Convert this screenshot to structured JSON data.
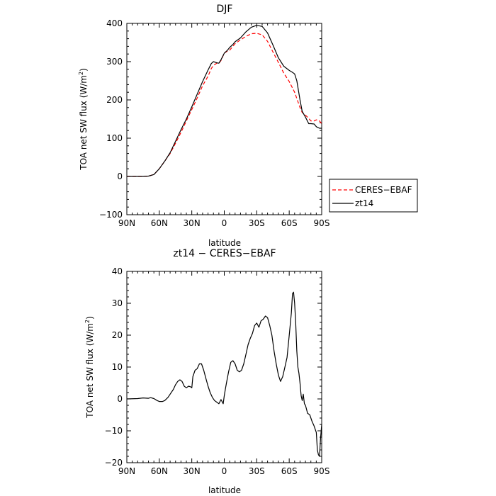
{
  "chart_data": [
    {
      "type": "line",
      "title": "DJF",
      "xlabel": "latitude",
      "ylabel": "TOA net SW flux (W/m²)",
      "ylabel_main": "TOA net SW flux (W/m",
      "ylabel_sup": "2",
      "ylabel_tail": ")",
      "xlim": [
        -90,
        90
      ],
      "ylim": [
        -100,
        400
      ],
      "x_ticks": [
        -90,
        -60,
        -30,
        0,
        30,
        60,
        90
      ],
      "x_tick_labels": [
        "90N",
        "60N",
        "30N",
        "0",
        "30S",
        "60S",
        "90S"
      ],
      "y_ticks": [
        -100,
        0,
        100,
        200,
        300,
        400
      ],
      "y_tick_labels": [
        "−100",
        "0",
        "100",
        "200",
        "300",
        "400"
      ],
      "legend_position": "outside-right",
      "series": [
        {
          "name": "CERES−EBAF",
          "color": "#ff0000",
          "style": "dashed",
          "x": [
            -90,
            -80,
            -75,
            -70,
            -65,
            -60,
            -55,
            -50,
            -45,
            -40,
            -35,
            -30,
            -25,
            -20,
            -15,
            -12,
            -10,
            -7,
            -5,
            -3,
            0,
            3,
            5,
            8,
            10,
            15,
            20,
            25,
            30,
            35,
            40,
            45,
            50,
            55,
            60,
            65,
            70,
            72,
            75,
            78,
            80,
            83,
            85,
            88,
            90
          ],
          "y": [
            0,
            0,
            0,
            1,
            5,
            20,
            40,
            60,
            87,
            115,
            145,
            175,
            205,
            237,
            262,
            282,
            290,
            296,
            296,
            303,
            322,
            328,
            330,
            340,
            347,
            357,
            366,
            373,
            374,
            370,
            353,
            325,
            298,
            270,
            248,
            220,
            180,
            167,
            160,
            152,
            145,
            145,
            148,
            145,
            138
          ]
        },
        {
          "name": "zt14",
          "color": "#000000",
          "style": "solid",
          "x": [
            -90,
            -80,
            -75,
            -70,
            -65,
            -60,
            -55,
            -50,
            -45,
            -40,
            -35,
            -30,
            -25,
            -20,
            -15,
            -12,
            -10,
            -7,
            -5,
            -3,
            0,
            3,
            5,
            8,
            10,
            15,
            20,
            25,
            30,
            35,
            40,
            45,
            50,
            55,
            60,
            63,
            65,
            67,
            70,
            72,
            75,
            78,
            80,
            83,
            85,
            88,
            90
          ],
          "y": [
            0,
            0,
            0,
            1,
            5,
            20,
            40,
            62,
            92,
            122,
            150,
            182,
            215,
            248,
            278,
            295,
            300,
            297,
            296,
            305,
            322,
            330,
            337,
            345,
            352,
            362,
            378,
            390,
            395,
            392,
            375,
            343,
            310,
            288,
            277,
            272,
            268,
            250,
            200,
            170,
            155,
            138,
            138,
            137,
            130,
            126,
            126
          ]
        }
      ]
    },
    {
      "type": "line",
      "title": "zt14 − CERES−EBAF",
      "xlabel": "latitude",
      "ylabel": "TOA net SW flux (W/m²)",
      "ylabel_main": "TOA net SW flux (W/m",
      "ylabel_sup": "2",
      "ylabel_tail": ")",
      "xlim": [
        -90,
        90
      ],
      "ylim": [
        -20,
        40
      ],
      "x_ticks": [
        -90,
        -60,
        -30,
        0,
        30,
        60,
        90
      ],
      "x_tick_labels": [
        "90N",
        "60N",
        "30N",
        "0",
        "30S",
        "60S",
        "90S"
      ],
      "y_ticks": [
        -20,
        -10,
        0,
        10,
        20,
        30,
        40
      ],
      "y_tick_labels": [
        "−20",
        "−10",
        "0",
        "10",
        "20",
        "30",
        "40"
      ],
      "series": [
        {
          "name": "",
          "color": "#000000",
          "style": "solid",
          "x": [
            -90,
            -80,
            -75,
            -70,
            -68,
            -65,
            -62,
            -60,
            -57,
            -55,
            -52,
            -50,
            -47,
            -45,
            -43,
            -41,
            -39,
            -37,
            -35,
            -33,
            -31,
            -30,
            -29,
            -27,
            -25,
            -23,
            -21,
            -19,
            -17,
            -15,
            -13,
            -11,
            -9,
            -7,
            -5,
            -3,
            -1,
            0,
            1,
            2,
            4,
            6,
            8,
            10,
            12,
            14,
            16,
            18,
            20,
            22,
            24,
            26,
            28,
            30,
            32,
            34,
            36,
            38,
            40,
            42,
            44,
            46,
            48,
            50,
            52,
            54,
            56,
            58,
            60,
            62,
            63,
            64,
            65,
            66,
            67,
            68,
            69,
            70,
            71,
            72,
            73,
            74,
            75,
            77,
            79,
            81,
            83,
            85,
            86,
            87,
            88,
            89,
            90
          ],
          "y": [
            0,
            0.1,
            0.3,
            0.2,
            0.4,
            0.1,
            -0.5,
            -0.8,
            -0.8,
            -0.5,
            0.5,
            1.5,
            3,
            4.5,
            5.5,
            6,
            5.5,
            4,
            3.5,
            4,
            3.8,
            3.5,
            7,
            9,
            9.5,
            11,
            11,
            9,
            6.5,
            4,
            2,
            0.5,
            -0.5,
            -1,
            -1.5,
            -0.2,
            -1.5,
            1,
            3,
            5,
            8.5,
            11.5,
            12,
            11,
            9,
            8.5,
            9,
            11,
            14,
            17,
            19,
            20.5,
            23,
            23.8,
            22.5,
            24.5,
            25,
            26,
            25.5,
            23,
            20,
            15,
            11,
            7.5,
            5.5,
            7,
            10,
            13,
            20,
            27,
            33,
            33.5,
            30,
            24,
            15,
            10,
            8,
            5,
            1,
            -0.5,
            1.5,
            -1.5,
            -2,
            -4.5,
            -5,
            -7,
            -8.5,
            -10.5,
            -16,
            -17.5,
            -18,
            -12,
            -8
          ]
        }
      ]
    }
  ]
}
